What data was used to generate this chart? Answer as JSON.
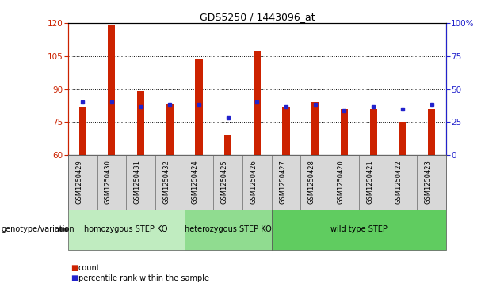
{
  "title": "GDS5250 / 1443096_at",
  "samples": [
    "GSM1250429",
    "GSM1250430",
    "GSM1250431",
    "GSM1250432",
    "GSM1250424",
    "GSM1250425",
    "GSM1250426",
    "GSM1250427",
    "GSM1250428",
    "GSM1250420",
    "GSM1250421",
    "GSM1250422",
    "GSM1250423"
  ],
  "red_values": [
    82,
    119,
    89,
    83,
    104,
    69,
    107,
    82,
    84,
    81,
    81,
    75,
    81
  ],
  "blue_values": [
    84,
    84,
    82,
    83,
    83,
    77,
    84,
    82,
    83,
    80,
    82,
    81,
    83
  ],
  "y_min": 60,
  "y_max": 120,
  "y_ticks": [
    60,
    75,
    90,
    105,
    120
  ],
  "right_y_ticks": [
    0,
    25,
    50,
    75,
    100
  ],
  "right_y_labels": [
    "0",
    "25",
    "50",
    "75",
    "100%"
  ],
  "groups": [
    {
      "label": "homozygous STEP KO",
      "start": 0,
      "end": 4,
      "color": "#c0ecc0"
    },
    {
      "label": "heterozygous STEP KO",
      "start": 4,
      "end": 7,
      "color": "#90dc90"
    },
    {
      "label": "wild type STEP",
      "start": 7,
      "end": 13,
      "color": "#60cc60"
    }
  ],
  "bar_color": "#cc2200",
  "blue_color": "#2222cc",
  "tick_bg_color": "#d8d8d8",
  "legend_count_label": "count",
  "legend_pct_label": "percentile rank within the sample",
  "genotype_label": "genotype/variation"
}
